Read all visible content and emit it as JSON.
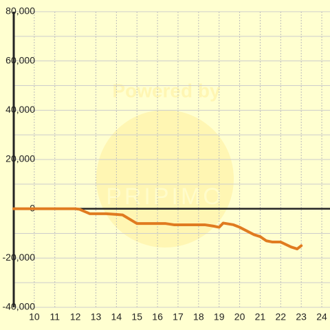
{
  "chart_data": {
    "type": "line",
    "watermark": [
      "Powered by",
      "PRIPIMO"
    ],
    "x": [
      9,
      12,
      12.2,
      12.7,
      13.5,
      14,
      14.3,
      15,
      16.4,
      16.8,
      18.3,
      18.7,
      19,
      19.2,
      19.7,
      20,
      20.7,
      21,
      21.3,
      21.6,
      22,
      22.5,
      22.8,
      23
    ],
    "series": [
      {
        "color": "#e07b20",
        "values": [
          0,
          0,
          -200,
          -2000,
          -2000,
          -2300,
          -2500,
          -6000,
          -6000,
          -6500,
          -6500,
          -7000,
          -7500,
          -5800,
          -6500,
          -7500,
          -10500,
          -11300,
          -13000,
          -13500,
          -13500,
          -15500,
          -16300,
          -15000
        ]
      }
    ],
    "xlim": [
      9,
      24.4
    ],
    "xticks": [
      10,
      11,
      12,
      13,
      14,
      15,
      16,
      17,
      18,
      19,
      20,
      21,
      22,
      23,
      24
    ],
    "ylim": [
      -40000,
      80000
    ],
    "yticks": [
      {
        "value": -40000,
        "label": "-40,000"
      },
      {
        "value": -20000,
        "label": "-20,000"
      },
      0,
      {
        "value": 20000,
        "label": "20,000"
      },
      {
        "value": 40000,
        "label": "40,000"
      },
      {
        "value": 60000,
        "label": "60,000"
      },
      {
        "value": 80000,
        "label": "80,000"
      }
    ],
    "minor_yticks": [
      -30000,
      -10000,
      10000,
      30000,
      50000,
      70000
    ],
    "grid": true
  }
}
